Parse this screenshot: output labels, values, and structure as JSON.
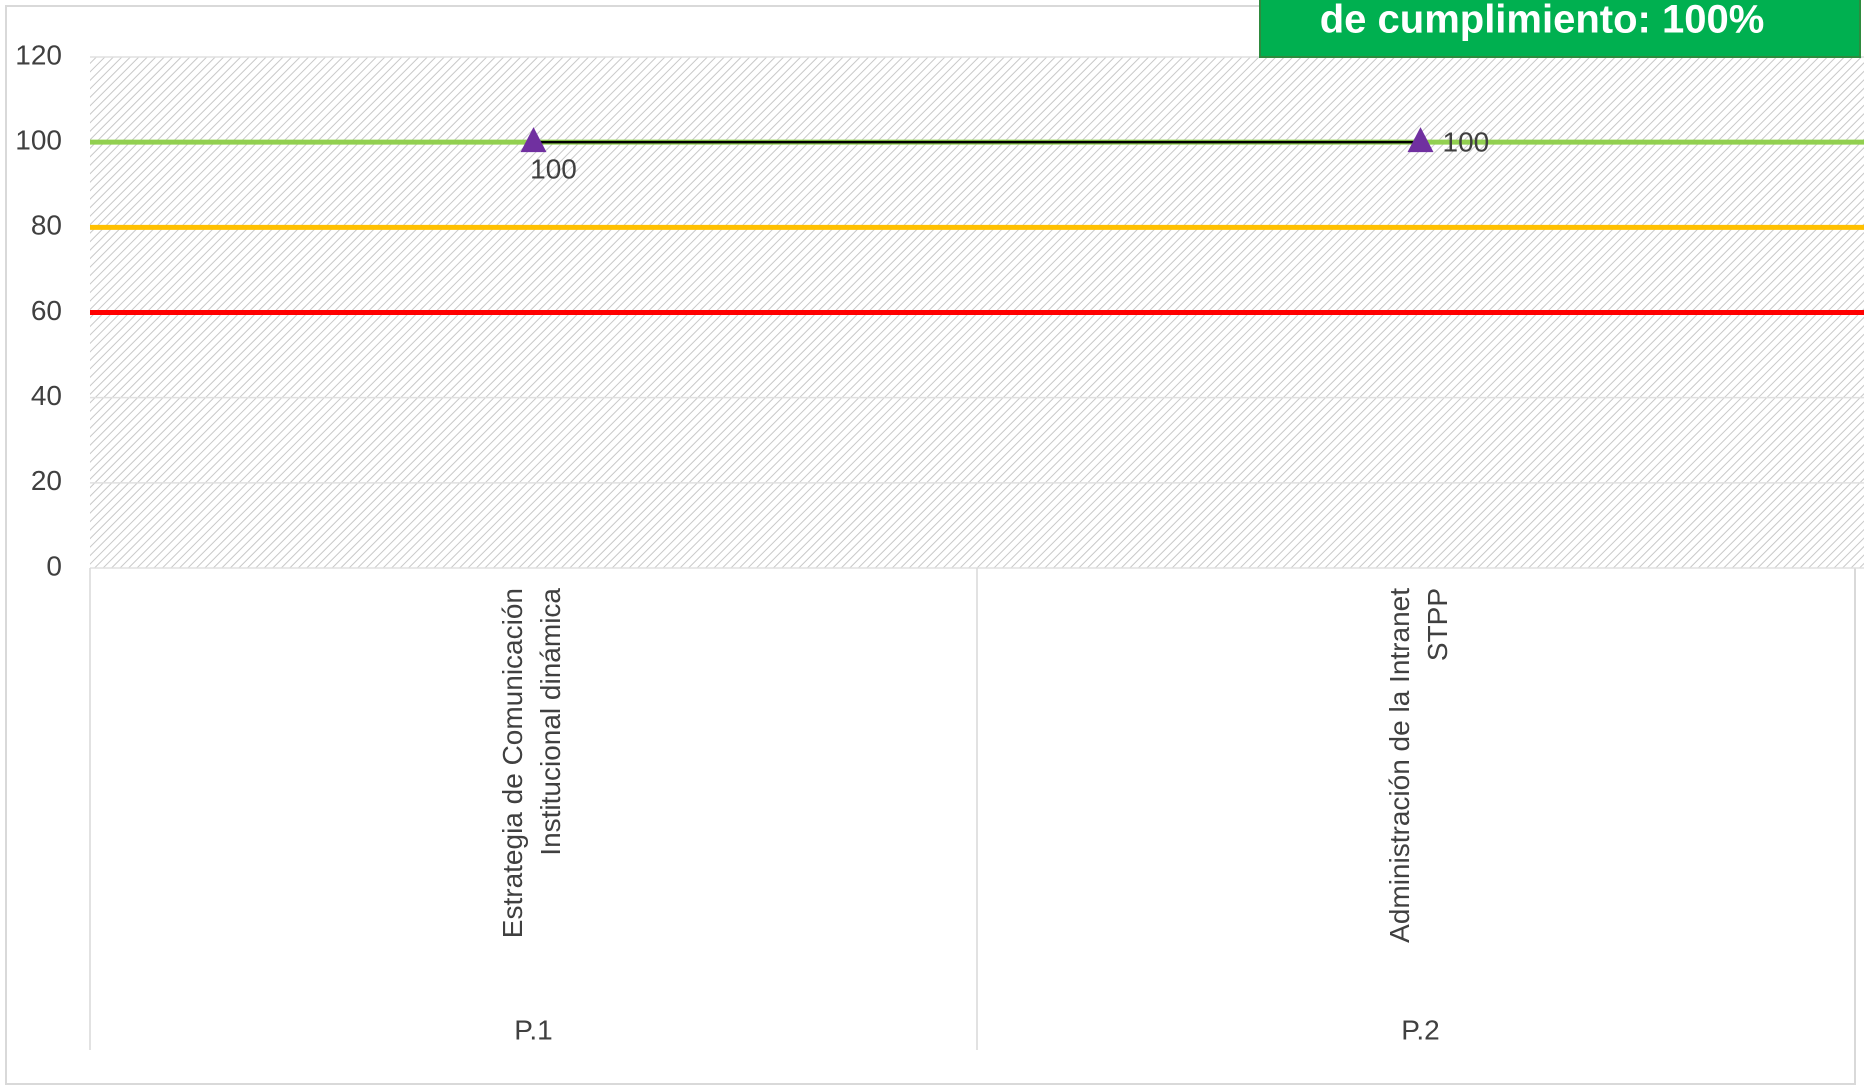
{
  "chart_data": {
    "type": "line",
    "annotation": "de cumplimiento: 100%",
    "categories": [
      [
        "Estrategia de Comunicación",
        "Institucional dinámica"
      ],
      [
        "Administración de la Intranet",
        "STPP"
      ]
    ],
    "groups": [
      "P.1",
      "P.2"
    ],
    "series": [
      {
        "color": "#000000",
        "marker_color": "#7030a0",
        "values": [
          100,
          100
        ]
      }
    ],
    "reference_lines": [
      {
        "value": 100,
        "color": "#92d050"
      },
      {
        "value": 80,
        "color": "#ffc000"
      },
      {
        "value": 60,
        "color": "#ff0000"
      }
    ],
    "ylim": [
      0,
      120
    ],
    "yticks": [
      0,
      20,
      40,
      60,
      80,
      100,
      120
    ],
    "grid": true
  }
}
